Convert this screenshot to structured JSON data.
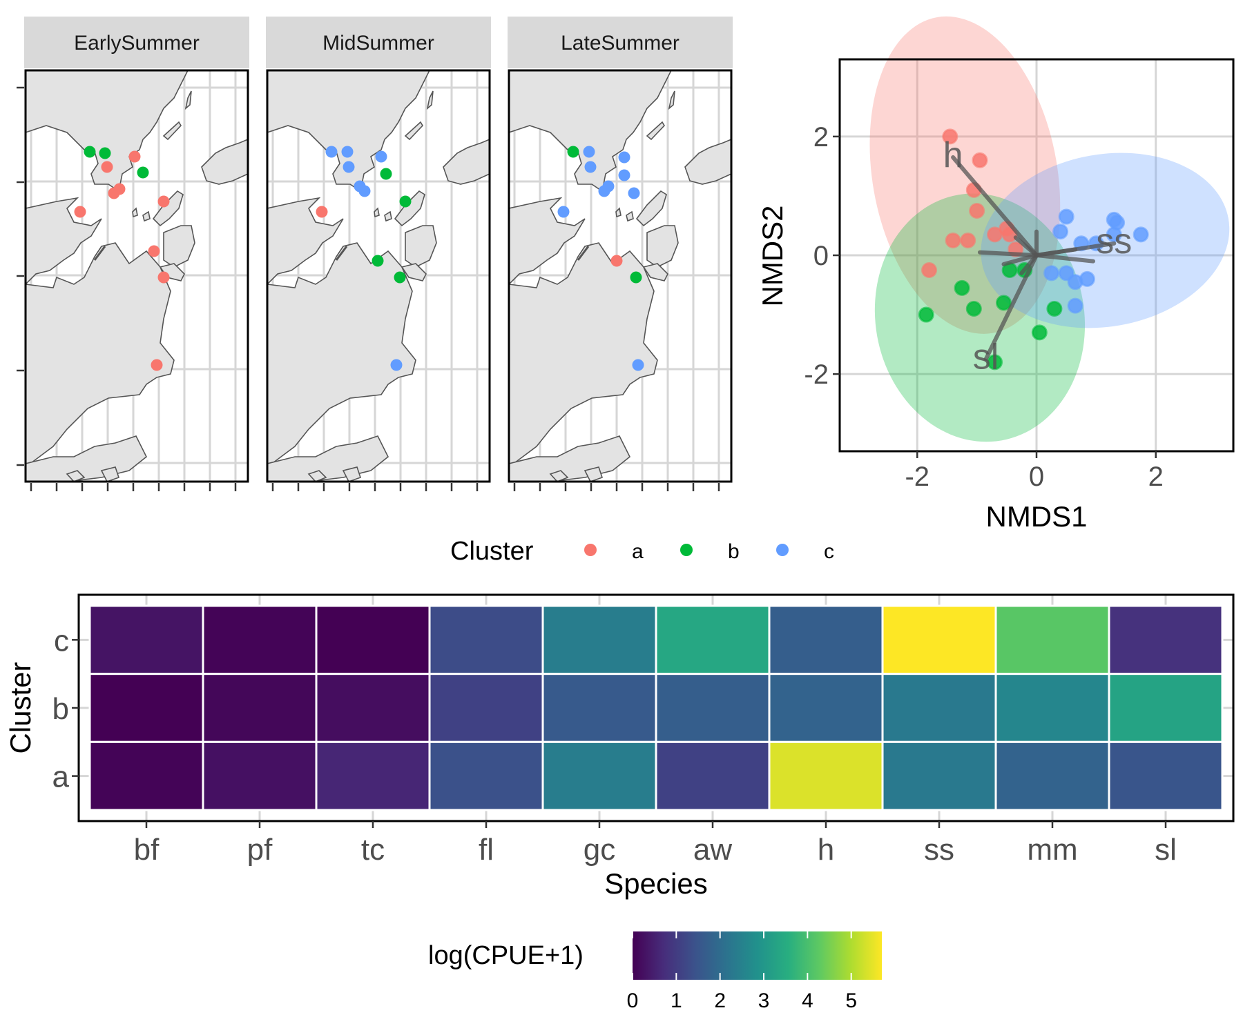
{
  "colors": {
    "cluster_a": "#F8766D",
    "cluster_b": "#00BA38",
    "cluster_c": "#619CFF",
    "land": "#E3E3E3",
    "coast": "#555555",
    "grid": "#D6D6D6",
    "strip": "#D9D9D9",
    "vector": "#555555"
  },
  "maps": {
    "panels": [
      {
        "title": "EarlySummer",
        "stations": [
          "b",
          "b",
          "a",
          "a",
          "a",
          "b",
          "a",
          "a",
          "a",
          "a",
          "a",
          "a",
          "a",
          "a",
          "a",
          "a"
        ]
      },
      {
        "title": "MidSummer",
        "stations": [
          "c",
          "c",
          "c",
          "c",
          "c",
          "b",
          "c",
          "c",
          "a",
          "b",
          "b",
          "b",
          "c",
          "c",
          "c",
          "c"
        ]
      },
      {
        "title": "LateSummer",
        "stations": [
          "b",
          "c",
          "c",
          "c",
          "c",
          "c",
          "c",
          "c",
          "c",
          "c",
          "a",
          "b",
          "c",
          "c",
          "c",
          "c"
        ]
      }
    ],
    "icon": "coastline-map"
  },
  "legend": {
    "title": "Cluster",
    "items": [
      {
        "key": "a",
        "label": "a"
      },
      {
        "key": "b",
        "label": "b"
      },
      {
        "key": "c",
        "label": "c"
      }
    ]
  },
  "chart_data": [
    {
      "type": "scatter",
      "xlabel": "NMDS1",
      "ylabel": "NMDS2",
      "xlim": [
        -3.3,
        3.3
      ],
      "ylim": [
        -3.3,
        3.3
      ],
      "xticks": [
        -2,
        0,
        2
      ],
      "yticks": [
        -2,
        0,
        2
      ],
      "x_tick_labels": [
        "-2",
        "0",
        "2"
      ],
      "y_tick_labels": [
        "-2",
        "0",
        "2"
      ],
      "grid": true,
      "series": [
        {
          "name": "a",
          "points": [
            [
              -1.45,
              2.0
            ],
            [
              -0.95,
              1.6
            ],
            [
              -1.05,
              1.1
            ],
            [
              -1.0,
              0.75
            ],
            [
              -1.4,
              0.25
            ],
            [
              -1.15,
              0.25
            ],
            [
              -0.7,
              0.35
            ],
            [
              -0.5,
              0.45
            ],
            [
              -0.45,
              0.35
            ],
            [
              -1.8,
              -0.25
            ],
            [
              -0.35,
              0.1
            ]
          ]
        },
        {
          "name": "b",
          "points": [
            [
              -1.85,
              -1.0
            ],
            [
              -1.25,
              -0.55
            ],
            [
              -1.05,
              -0.9
            ],
            [
              -0.55,
              -0.8
            ],
            [
              -0.45,
              -0.25
            ],
            [
              -0.2,
              -0.25
            ],
            [
              0.3,
              -0.9
            ],
            [
              0.05,
              -1.3
            ],
            [
              -0.7,
              -1.8
            ]
          ]
        },
        {
          "name": "c",
          "points": [
            [
              0.5,
              0.65
            ],
            [
              0.4,
              0.4
            ],
            [
              1.3,
              0.6
            ],
            [
              1.35,
              0.55
            ],
            [
              1.75,
              0.35
            ],
            [
              1.3,
              0.35
            ],
            [
              0.75,
              0.2
            ],
            [
              1.0,
              0.2
            ],
            [
              0.5,
              -0.3
            ],
            [
              0.65,
              -0.45
            ],
            [
              0.85,
              -0.4
            ],
            [
              0.65,
              -0.85
            ],
            [
              0.25,
              -0.3
            ]
          ]
        }
      ],
      "ellipses": [
        {
          "cluster": "a",
          "cx": -1.2,
          "cy": 1.35,
          "rx": 1.55,
          "ry": 2.7,
          "angle": -10
        },
        {
          "cluster": "b",
          "cx": -0.95,
          "cy": -1.05,
          "rx": 1.75,
          "ry": 2.1,
          "angle": -10
        },
        {
          "cluster": "c",
          "cx": 1.15,
          "cy": 0.25,
          "rx": 2.1,
          "ry": 1.45,
          "angle": -10
        }
      ],
      "vectors": [
        {
          "label": "h",
          "x": -1.4,
          "y": 1.65
        },
        {
          "label": "ss",
          "x": 1.3,
          "y": 0.2
        },
        {
          "label": "sl",
          "x": -0.85,
          "y": -1.75
        },
        {
          "label": "",
          "x": -0.95,
          "y": 0.05
        },
        {
          "label": "",
          "x": -0.35,
          "y": 0.3
        },
        {
          "label": "",
          "x": 0.0,
          "y": 0.4
        },
        {
          "label": "",
          "x": -0.25,
          "y": -0.3
        },
        {
          "label": "",
          "x": 0.95,
          "y": -0.1
        },
        {
          "label": "",
          "x": 0.65,
          "y": 0.1
        },
        {
          "label": "",
          "x": -0.55,
          "y": -0.15
        }
      ]
    },
    {
      "type": "heatmap",
      "xlabel": "Species",
      "ylabel": "Cluster",
      "x": [
        "bf",
        "pf",
        "tc",
        "fl",
        "gc",
        "aw",
        "h",
        "ss",
        "mm",
        "sl"
      ],
      "y": [
        "c",
        "b",
        "a"
      ],
      "values": [
        [
          0.3,
          0.05,
          0.0,
          1.3,
          2.4,
          3.4,
          1.7,
          5.7,
          4.2,
          0.8
        ],
        [
          0.0,
          0.1,
          0.2,
          1.1,
          1.6,
          1.7,
          1.8,
          2.3,
          2.6,
          3.3
        ],
        [
          0.05,
          0.25,
          0.6,
          1.4,
          2.4,
          1.1,
          5.4,
          2.3,
          1.8,
          1.5
        ]
      ],
      "legend": {
        "title": "log(CPUE+1)",
        "min": 0,
        "max": 5.7,
        "ticks": [
          0,
          1,
          2,
          3,
          4,
          5
        ],
        "tick_labels": [
          "0",
          "1",
          "2",
          "3",
          "4",
          "5"
        ]
      }
    }
  ]
}
